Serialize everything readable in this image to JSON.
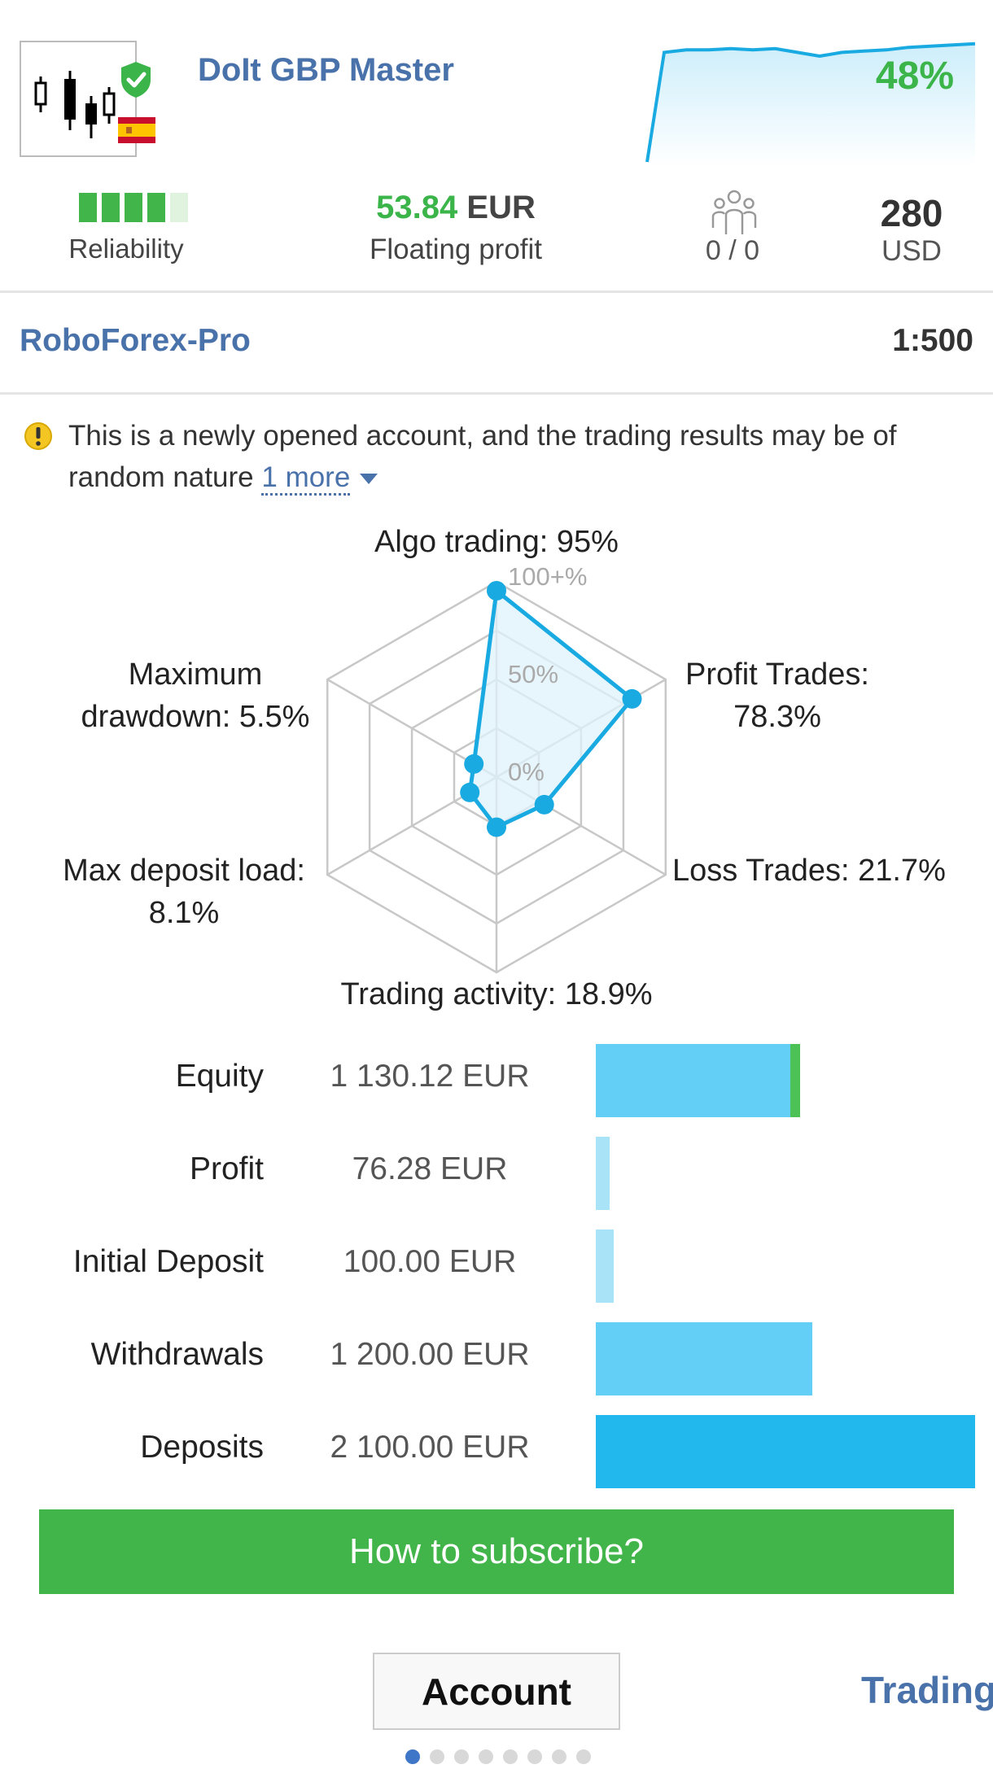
{
  "signal": {
    "name": "DoIt GBP Master",
    "growth": "48%",
    "icons": {
      "logo": "candlestick-chart-icon",
      "badge": "check-shield-icon",
      "flag": "spain-flag-icon"
    },
    "sparkline_trend": [
      0,
      0.88,
      0.9,
      0.9,
      0.91,
      0.9,
      0.91,
      0.88,
      0.85,
      0.88,
      0.89,
      0.9,
      0.92,
      0.93,
      0.94,
      0.95
    ]
  },
  "stats": {
    "reliability": {
      "label": "Reliability",
      "level": 4,
      "max": 5
    },
    "floating_profit": {
      "value": "53.84",
      "currency": "EUR",
      "label": "Floating profit"
    },
    "subscribers": {
      "value": "0 / 0",
      "icon": "subscribers-icon"
    },
    "price": {
      "value": "280",
      "currency": "USD"
    }
  },
  "broker": {
    "name": "RoboForex-Pro",
    "leverage": "1:500"
  },
  "warning": {
    "icon": "warning-icon",
    "text": "This is a newly opened account, and the trading results may be of random nature",
    "more_label": "1 more"
  },
  "chart_data": {
    "type": "radar",
    "axes": [
      {
        "label_line1": "Algo trading: 95%",
        "label_line2": "",
        "value": 95
      },
      {
        "label_line1": "Profit Trades:",
        "label_line2": "78.3%",
        "value": 78.3
      },
      {
        "label_line1": "Loss Trades: 21.7%",
        "label_line2": "",
        "value": 21.7
      },
      {
        "label_line1": "Trading activity: 18.9%",
        "label_line2": "",
        "value": 18.9
      },
      {
        "label_line1": "Max deposit load:",
        "label_line2": "8.1%",
        "value": 8.1
      },
      {
        "label_line1": "Maximum",
        "label_line2": "drawdown: 5.5%",
        "value": 5.5
      }
    ],
    "scale_labels": [
      "100+%",
      "50%",
      "0%"
    ],
    "range": [
      0,
      100
    ],
    "colors": {
      "line": "#1aaae2",
      "fill": "#dff2fb",
      "grid": "#c8c8c8"
    }
  },
  "balances": [
    {
      "name": "Equity",
      "value": "1 130.12 EUR",
      "amount": 1130.12,
      "color": "#63cef6",
      "accent": true
    },
    {
      "name": "Profit",
      "value": "76.28 EUR",
      "amount": 76.28,
      "color": "#a8e3f8",
      "accent": false
    },
    {
      "name": "Initial Deposit",
      "value": "100.00 EUR",
      "amount": 100.0,
      "color": "#a8e3f8",
      "accent": false
    },
    {
      "name": "Withdrawals",
      "value": "1 200.00 EUR",
      "amount": 1200.0,
      "color": "#63cef6",
      "accent": false
    },
    {
      "name": "Deposits",
      "value": "2 100.00 EUR",
      "amount": 2100.0,
      "color": "#22b8ee",
      "accent": false
    }
  ],
  "subscribe_label": "How to subscribe?",
  "tabs": {
    "account": "Account",
    "trading": "Trading",
    "page_count": 8,
    "active_index": 0
  }
}
